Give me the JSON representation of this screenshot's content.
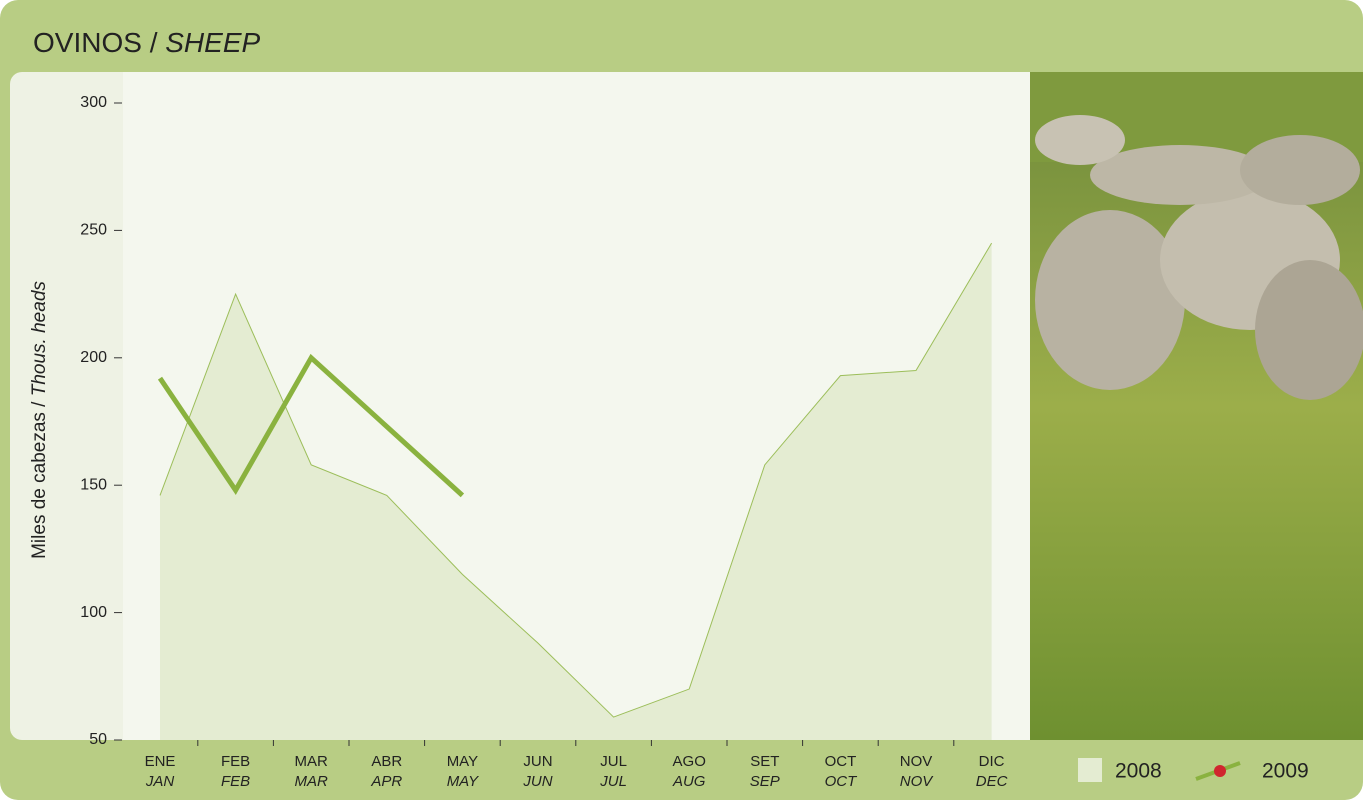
{
  "chart_data": {
    "type": "line",
    "title_es": "OVINOS /",
    "title_en": "SHEEP",
    "y_label_es": "Miles de cabezas /",
    "y_label_en": "Thous. heads",
    "categories": [
      "ENE",
      "FEB",
      "MAR",
      "ABR",
      "MAY",
      "JUN",
      "JUL",
      "AGO",
      "SET",
      "OCT",
      "NOV",
      "DIC"
    ],
    "categories_en": [
      "JAN",
      "FEB",
      "MAR",
      "APR",
      "MAY",
      "JUN",
      "JUL",
      "AUG",
      "SEP",
      "OCT",
      "NOV",
      "DEC"
    ],
    "series": [
      {
        "name": "2008",
        "style": "area",
        "color": "#e4ecd2",
        "values": [
          146,
          225,
          158,
          146,
          115,
          88,
          59,
          70,
          158,
          193,
          195,
          245
        ]
      },
      {
        "name": "2009",
        "style": "line",
        "color": "#8ab23f",
        "values": [
          192,
          148,
          200,
          173,
          146,
          null,
          null,
          null,
          null,
          null,
          null,
          null
        ]
      }
    ],
    "ylim": [
      50,
      300
    ],
    "yticks": [
      50,
      100,
      150,
      200,
      250,
      300
    ],
    "grid": false,
    "legend": "bottom-right"
  }
}
